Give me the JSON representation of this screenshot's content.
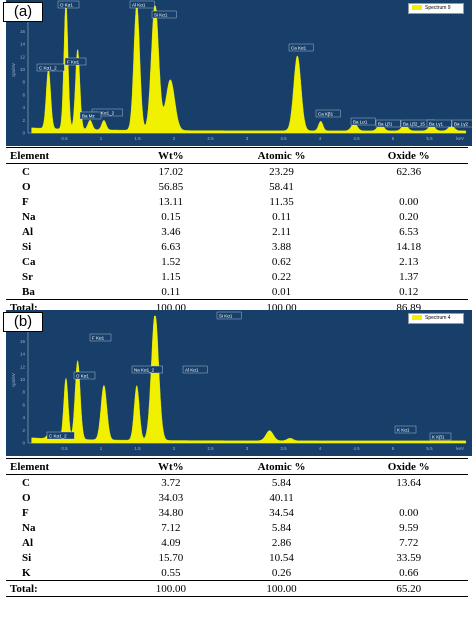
{
  "colors": {
    "spectrum_bg": "#173f6a",
    "trace": "#f0f000",
    "axis_text": "#9fb4cc"
  },
  "headers": {
    "element": "Element",
    "wt": "Wt%",
    "atomic": "Atomic %",
    "oxide": "Oxide %"
  },
  "panels": [
    {
      "label": "(a)",
      "legend": "Spectrum 9",
      "ylabel": "cps/eV",
      "xunit": "keV",
      "yticks": [
        "20",
        "18",
        "16",
        "14",
        "12",
        "10",
        "8",
        "6",
        "4",
        "2",
        "0"
      ],
      "xticks": [
        "0.5",
        "1",
        "1.5",
        "2",
        "2.5",
        "3",
        "3.5",
        "4",
        "4.5",
        "5",
        "5.5"
      ],
      "peak_labels": [
        "C Kα1_2",
        "O Kα1",
        "F Kα1",
        "Al Kα1",
        "Si Kα1",
        "Na Kα1_2",
        "Ba Mz",
        "Ca Kα1",
        "Ca Kβ1",
        "Ba Lα1",
        "Ba Lβ1",
        "Ba Lβ2_15",
        "Ba Lγ1",
        "Ba Lγ2"
      ],
      "rows": [
        {
          "el": "C",
          "wt": "17.02",
          "at": "23.29",
          "ox": "62.36"
        },
        {
          "el": "O",
          "wt": "56.85",
          "at": "58.41",
          "ox": ""
        },
        {
          "el": "F",
          "wt": "13.11",
          "at": "11.35",
          "ox": "0.00"
        },
        {
          "el": "Na",
          "wt": "0.15",
          "at": "0.11",
          "ox": "0.20"
        },
        {
          "el": "Al",
          "wt": "3.46",
          "at": "2.11",
          "ox": "6.53"
        },
        {
          "el": "Si",
          "wt": "6.63",
          "at": "3.88",
          "ox": "14.18"
        },
        {
          "el": "Ca",
          "wt": "1.52",
          "at": "0.62",
          "ox": "2.13"
        },
        {
          "el": "Sr",
          "wt": "1.15",
          "at": "0.22",
          "ox": "1.37"
        },
        {
          "el": "Ba",
          "wt": "0.11",
          "at": "0.01",
          "ox": "0.12"
        }
      ],
      "total": {
        "el": "Total:",
        "wt": "100.00",
        "at": "100.00",
        "ox": "86.89"
      }
    },
    {
      "label": "(b)",
      "legend": "Spectrum 4",
      "ylabel": "cps/eV",
      "xunit": "keV",
      "yticks": [
        "20",
        "18",
        "16",
        "14",
        "12",
        "10",
        "8",
        "6",
        "4",
        "2",
        "0"
      ],
      "xticks": [
        "0.5",
        "1",
        "1.5",
        "2",
        "2.5",
        "3",
        "3.5",
        "4",
        "4.5",
        "5",
        "5.5"
      ],
      "peak_labels": [
        "C Kα1_2",
        "O Kα1",
        "F Kα1",
        "Na Kα1_2",
        "Al Kα1",
        "Si Kα1",
        "K Kα1",
        "K Kβ1"
      ],
      "rows": [
        {
          "el": "C",
          "wt": "3.72",
          "at": "5.84",
          "ox": "13.64"
        },
        {
          "el": "O",
          "wt": "34.03",
          "at": "40.11",
          "ox": ""
        },
        {
          "el": "F",
          "wt": "34.80",
          "at": "34.54",
          "ox": "0.00"
        },
        {
          "el": "Na",
          "wt": "7.12",
          "at": "5.84",
          "ox": "9.59"
        },
        {
          "el": "Al",
          "wt": "4.09",
          "at": "2.86",
          "ox": "7.72"
        },
        {
          "el": "Si",
          "wt": "15.70",
          "at": "10.54",
          "ox": "33.59"
        },
        {
          "el": "K",
          "wt": "0.55",
          "at": "0.26",
          "ox": "0.66"
        }
      ],
      "total": {
        "el": "Total:",
        "wt": "100.00",
        "at": "100.00",
        "ox": "65.20"
      }
    }
  ],
  "chart_data": [
    {
      "type": "line",
      "title": "",
      "series": [
        {
          "name": "Spectrum 9",
          "peaks_keV": [
            0.28,
            0.52,
            0.68,
            0.85,
            1.04,
            1.49,
            1.74,
            1.95,
            3.69,
            4.01,
            4.47,
            4.83,
            5.16,
            5.53,
            5.8
          ],
          "peak_heights": [
            9.4,
            20,
            12.6,
            1.5,
            1.5,
            20,
            20,
            8,
            11.8,
            1.5,
            1.2,
            1.1,
            1.0,
            0.9,
            0.8
          ]
        }
      ],
      "xlabel": "keV",
      "ylabel": "cps/eV",
      "xlim": [
        0,
        6
      ],
      "ylim": [
        0,
        20
      ]
    },
    {
      "type": "line",
      "title": "",
      "series": [
        {
          "name": "Spectrum 4",
          "peaks_keV": [
            0.28,
            0.52,
            0.68,
            1.04,
            1.49,
            1.74,
            3.31,
            3.59
          ],
          "peak_heights": [
            0.6,
            9.6,
            12.4,
            8.6,
            8.6,
            20,
            1.6,
            0.4
          ]
        }
      ],
      "xlabel": "keV",
      "ylabel": "cps/eV",
      "xlim": [
        0,
        6
      ],
      "ylim": [
        0,
        20
      ]
    }
  ]
}
